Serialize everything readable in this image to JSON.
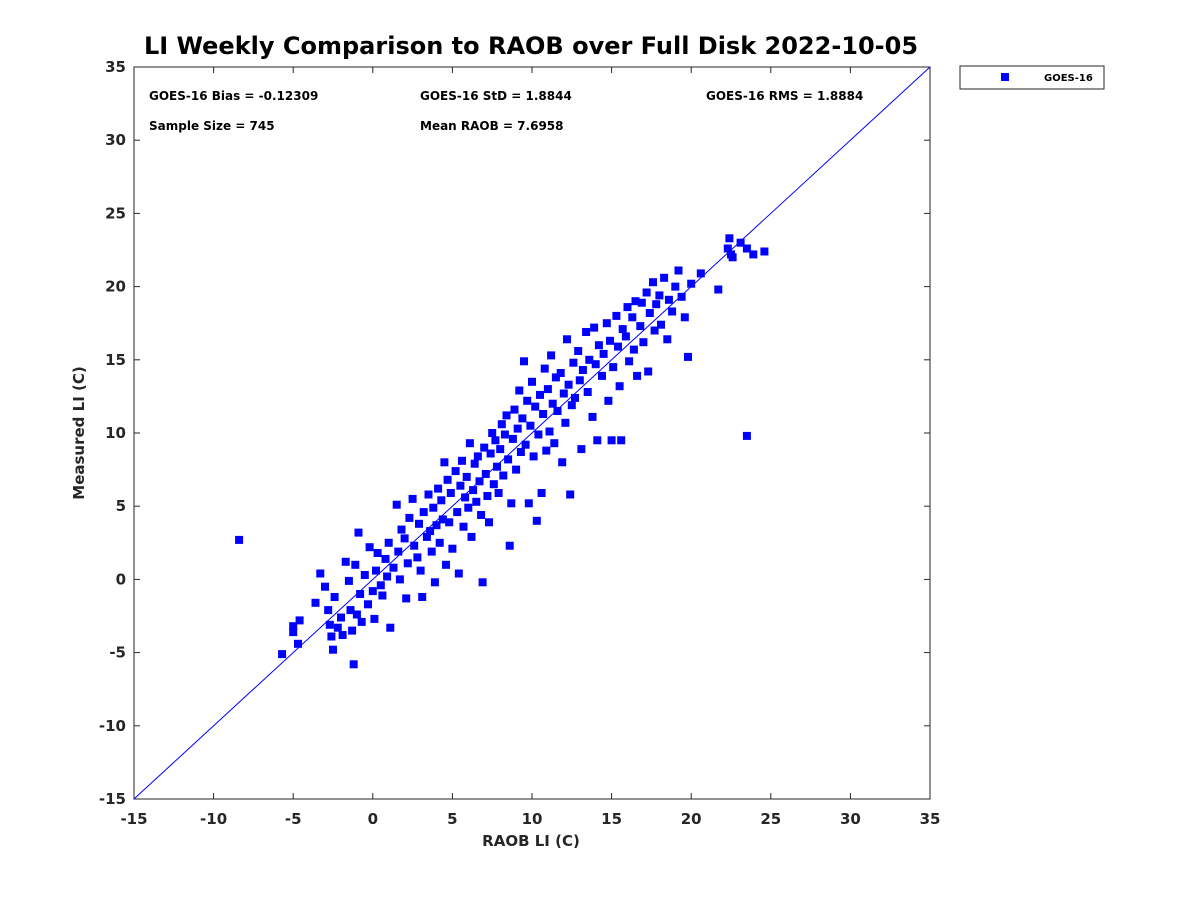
{
  "chart_data": {
    "type": "scatter",
    "title": "LI Weekly Comparison to RAOB over Full Disk 2022-10-05",
    "xlabel": "RAOB LI (C)",
    "ylabel": "Measured LI (C)",
    "xlim": [
      -15,
      35
    ],
    "ylim": [
      -15,
      35
    ],
    "xticks": [
      "-15",
      "-10",
      "-5",
      "0",
      "5",
      "10",
      "15",
      "20",
      "25",
      "30",
      "35"
    ],
    "yticks": [
      "-15",
      "-10",
      "-5",
      "0",
      "5",
      "10",
      "15",
      "20",
      "25",
      "30",
      "35"
    ],
    "grid": false,
    "legend_position": "outside-top-right",
    "reference_line": {
      "from": [
        -15,
        -15
      ],
      "to": [
        35,
        35
      ],
      "color": "#0000ff"
    },
    "stats": {
      "bias": "GOES-16 Bias = -0.12309",
      "std": "GOES-16 StD = 1.8844",
      "rms": "GOES-16 RMS = 1.8884",
      "sample_size": "Sample Size = 745",
      "mean_raob": "Mean RAOB = 7.6958"
    },
    "series": [
      {
        "name": "GOES-16",
        "color": "#0000ff",
        "marker": "square",
        "points": [
          [
            -8.4,
            2.7
          ],
          [
            -5.7,
            -5.1
          ],
          [
            -5.0,
            -3.2
          ],
          [
            -5.0,
            -3.6
          ],
          [
            -4.6,
            -2.8
          ],
          [
            -4.7,
            -4.4
          ],
          [
            -3.6,
            -1.6
          ],
          [
            -3.3,
            0.4
          ],
          [
            -3.0,
            -0.5
          ],
          [
            -2.8,
            -2.1
          ],
          [
            -2.7,
            -3.1
          ],
          [
            -2.6,
            -3.9
          ],
          [
            -2.5,
            -4.8
          ],
          [
            -2.4,
            -1.2
          ],
          [
            -2.2,
            -3.3
          ],
          [
            -2.0,
            -2.6
          ],
          [
            -1.9,
            -3.8
          ],
          [
            -1.7,
            1.2
          ],
          [
            -1.5,
            -0.1
          ],
          [
            -1.4,
            -2.1
          ],
          [
            -1.3,
            -3.5
          ],
          [
            -1.2,
            -5.8
          ],
          [
            -1.1,
            1.0
          ],
          [
            -1.0,
            -2.4
          ],
          [
            -0.9,
            3.2
          ],
          [
            -0.8,
            -1.0
          ],
          [
            -0.7,
            -2.9
          ],
          [
            -0.5,
            0.3
          ],
          [
            -0.3,
            -1.7
          ],
          [
            -0.2,
            2.2
          ],
          [
            0.0,
            -0.8
          ],
          [
            0.1,
            -2.7
          ],
          [
            0.2,
            0.6
          ],
          [
            0.3,
            1.8
          ],
          [
            0.5,
            -0.4
          ],
          [
            0.6,
            -1.1
          ],
          [
            0.8,
            1.4
          ],
          [
            0.9,
            0.2
          ],
          [
            1.0,
            2.5
          ],
          [
            1.1,
            -3.3
          ],
          [
            1.3,
            0.8
          ],
          [
            1.5,
            5.1
          ],
          [
            1.6,
            1.9
          ],
          [
            1.7,
            0.0
          ],
          [
            1.8,
            3.4
          ],
          [
            2.0,
            2.8
          ],
          [
            2.1,
            -1.3
          ],
          [
            2.2,
            1.1
          ],
          [
            2.3,
            4.2
          ],
          [
            2.5,
            5.5
          ],
          [
            2.6,
            2.3
          ],
          [
            2.8,
            1.5
          ],
          [
            2.9,
            3.8
          ],
          [
            3.0,
            0.6
          ],
          [
            3.1,
            -1.2
          ],
          [
            3.2,
            4.6
          ],
          [
            3.4,
            2.9
          ],
          [
            3.5,
            5.8
          ],
          [
            3.6,
            3.3
          ],
          [
            3.7,
            1.9
          ],
          [
            3.8,
            4.9
          ],
          [
            3.9,
            -0.2
          ],
          [
            4.0,
            3.7
          ],
          [
            4.1,
            6.2
          ],
          [
            4.2,
            2.5
          ],
          [
            4.3,
            5.4
          ],
          [
            4.4,
            4.1
          ],
          [
            4.5,
            8.0
          ],
          [
            4.6,
            1.0
          ],
          [
            4.7,
            6.8
          ],
          [
            4.8,
            3.9
          ],
          [
            4.9,
            5.9
          ],
          [
            5.0,
            2.1
          ],
          [
            5.2,
            7.4
          ],
          [
            5.3,
            4.6
          ],
          [
            5.4,
            0.4
          ],
          [
            5.5,
            6.4
          ],
          [
            5.6,
            8.1
          ],
          [
            5.7,
            3.6
          ],
          [
            5.8,
            5.6
          ],
          [
            5.9,
            7.0
          ],
          [
            6.0,
            4.9
          ],
          [
            6.1,
            9.3
          ],
          [
            6.2,
            2.9
          ],
          [
            6.3,
            6.1
          ],
          [
            6.4,
            7.9
          ],
          [
            6.5,
            5.3
          ],
          [
            6.6,
            8.4
          ],
          [
            6.7,
            6.7
          ],
          [
            6.8,
            4.4
          ],
          [
            6.9,
            -0.2
          ],
          [
            7.0,
            9.0
          ],
          [
            7.1,
            7.2
          ],
          [
            7.2,
            5.7
          ],
          [
            7.3,
            3.9
          ],
          [
            7.4,
            8.6
          ],
          [
            7.5,
            10.0
          ],
          [
            7.6,
            6.5
          ],
          [
            7.7,
            9.5
          ],
          [
            7.8,
            7.7
          ],
          [
            7.9,
            5.9
          ],
          [
            8.0,
            8.9
          ],
          [
            8.1,
            10.6
          ],
          [
            8.2,
            7.1
          ],
          [
            8.3,
            9.9
          ],
          [
            8.4,
            11.2
          ],
          [
            8.5,
            8.2
          ],
          [
            8.6,
            2.3
          ],
          [
            8.7,
            5.2
          ],
          [
            8.8,
            9.6
          ],
          [
            8.9,
            11.6
          ],
          [
            9.0,
            7.5
          ],
          [
            9.1,
            10.3
          ],
          [
            9.2,
            12.9
          ],
          [
            9.3,
            8.7
          ],
          [
            9.4,
            11.0
          ],
          [
            9.5,
            14.9
          ],
          [
            9.6,
            9.2
          ],
          [
            9.7,
            12.2
          ],
          [
            9.8,
            5.2
          ],
          [
            9.9,
            10.5
          ],
          [
            10.0,
            13.5
          ],
          [
            10.1,
            8.4
          ],
          [
            10.2,
            11.8
          ],
          [
            10.3,
            4.0
          ],
          [
            10.4,
            9.9
          ],
          [
            10.5,
            12.6
          ],
          [
            10.6,
            5.9
          ],
          [
            10.7,
            11.3
          ],
          [
            10.8,
            14.4
          ],
          [
            10.9,
            8.8
          ],
          [
            11.0,
            13.0
          ],
          [
            11.1,
            10.1
          ],
          [
            11.2,
            15.3
          ],
          [
            11.3,
            12.0
          ],
          [
            11.4,
            9.3
          ],
          [
            11.5,
            13.8
          ],
          [
            11.6,
            11.5
          ],
          [
            11.8,
            14.1
          ],
          [
            11.9,
            8.0
          ],
          [
            12.0,
            12.7
          ],
          [
            12.1,
            10.7
          ],
          [
            12.2,
            16.4
          ],
          [
            12.3,
            13.3
          ],
          [
            12.4,
            5.8
          ],
          [
            12.5,
            11.9
          ],
          [
            12.6,
            14.8
          ],
          [
            12.7,
            12.4
          ],
          [
            12.9,
            15.6
          ],
          [
            13.0,
            13.6
          ],
          [
            13.1,
            8.9
          ],
          [
            13.2,
            14.3
          ],
          [
            13.4,
            16.9
          ],
          [
            13.5,
            12.8
          ],
          [
            13.6,
            15.0
          ],
          [
            13.8,
            11.1
          ],
          [
            13.9,
            17.2
          ],
          [
            14.0,
            14.7
          ],
          [
            14.1,
            9.5
          ],
          [
            14.2,
            16.0
          ],
          [
            14.4,
            13.9
          ],
          [
            14.5,
            15.4
          ],
          [
            14.7,
            17.5
          ],
          [
            14.8,
            12.2
          ],
          [
            14.9,
            16.3
          ],
          [
            15.0,
            9.5
          ],
          [
            15.1,
            14.5
          ],
          [
            15.3,
            18.0
          ],
          [
            15.4,
            15.9
          ],
          [
            15.5,
            13.2
          ],
          [
            15.6,
            9.5
          ],
          [
            15.7,
            17.1
          ],
          [
            15.9,
            16.6
          ],
          [
            16.0,
            18.6
          ],
          [
            16.1,
            14.9
          ],
          [
            16.3,
            17.9
          ],
          [
            16.4,
            15.7
          ],
          [
            16.5,
            19.0
          ],
          [
            16.6,
            13.9
          ],
          [
            16.8,
            17.3
          ],
          [
            16.9,
            18.9
          ],
          [
            17.0,
            16.2
          ],
          [
            17.2,
            19.6
          ],
          [
            17.3,
            14.2
          ],
          [
            17.4,
            18.2
          ],
          [
            17.6,
            20.3
          ],
          [
            17.7,
            17.0
          ],
          [
            17.8,
            18.8
          ],
          [
            18.0,
            19.4
          ],
          [
            18.1,
            17.4
          ],
          [
            18.3,
            20.6
          ],
          [
            18.5,
            16.4
          ],
          [
            18.6,
            19.1
          ],
          [
            18.8,
            18.3
          ],
          [
            19.0,
            20.0
          ],
          [
            19.2,
            21.1
          ],
          [
            19.4,
            19.3
          ],
          [
            19.6,
            17.9
          ],
          [
            19.8,
            15.2
          ],
          [
            20.0,
            20.2
          ],
          [
            20.6,
            20.9
          ],
          [
            21.7,
            19.8
          ],
          [
            22.3,
            22.6
          ],
          [
            22.4,
            23.3
          ],
          [
            22.5,
            22.2
          ],
          [
            22.6,
            22.0
          ],
          [
            23.1,
            23.0
          ],
          [
            23.5,
            22.6
          ],
          [
            23.5,
            9.8
          ],
          [
            23.9,
            22.2
          ],
          [
            24.6,
            22.4
          ]
        ]
      }
    ]
  }
}
